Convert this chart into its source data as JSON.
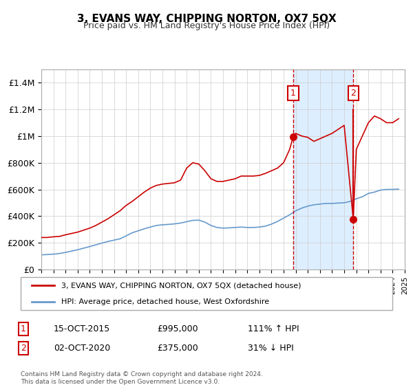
{
  "title": "3, EVANS WAY, CHIPPING NORTON, OX7 5QX",
  "subtitle": "Price paid vs. HM Land Registry's House Price Index (HPI)",
  "legend_label_red": "3, EVANS WAY, CHIPPING NORTON, OX7 5QX (detached house)",
  "legend_label_blue": "HPI: Average price, detached house, West Oxfordshire",
  "annotation1_label": "1",
  "annotation1_date": "15-OCT-2015",
  "annotation1_price": "£995,000",
  "annotation1_hpi": "111% ↑ HPI",
  "annotation1_year": 2015.79,
  "annotation1_value": 995000,
  "annotation2_label": "2",
  "annotation2_date": "02-OCT-2020",
  "annotation2_price": "£375,000",
  "annotation2_hpi": "31% ↓ HPI",
  "annotation2_year": 2020.75,
  "annotation2_value": 375000,
  "footer": "Contains HM Land Registry data © Crown copyright and database right 2024.\nThis data is licensed under the Open Government Licence v3.0.",
  "red_color": "#cc0000",
  "blue_color": "#6699cc",
  "shaded_color": "#ddeeff",
  "grid_color": "#cccccc",
  "ylim": [
    0,
    1500000
  ],
  "xlim_start": 1995,
  "xlim_end": 2025,
  "red_line": {
    "years": [
      1995.0,
      1995.5,
      1996.0,
      1996.5,
      1997.0,
      1997.5,
      1998.0,
      1998.5,
      1999.0,
      1999.5,
      2000.0,
      2000.5,
      2001.0,
      2001.5,
      2002.0,
      2002.5,
      2003.0,
      2003.5,
      2004.0,
      2004.5,
      2005.0,
      2005.5,
      2006.0,
      2006.5,
      2007.0,
      2007.5,
      2008.0,
      2008.5,
      2009.0,
      2009.5,
      2010.0,
      2010.5,
      2011.0,
      2011.5,
      2012.0,
      2012.5,
      2013.0,
      2013.5,
      2014.0,
      2014.5,
      2015.0,
      2015.5,
      2015.79,
      2016.0,
      2016.5,
      2017.0,
      2017.5,
      2018.0,
      2018.5,
      2019.0,
      2019.5,
      2020.0,
      2020.75,
      2021.0,
      2021.5,
      2022.0,
      2022.5,
      2023.0,
      2023.5,
      2024.0,
      2024.5
    ],
    "values": [
      240000,
      240000,
      245000,
      248000,
      260000,
      270000,
      280000,
      295000,
      310000,
      330000,
      355000,
      380000,
      410000,
      440000,
      480000,
      510000,
      545000,
      580000,
      610000,
      630000,
      640000,
      645000,
      650000,
      670000,
      760000,
      800000,
      790000,
      740000,
      680000,
      660000,
      660000,
      670000,
      680000,
      700000,
      700000,
      700000,
      705000,
      720000,
      740000,
      760000,
      800000,
      900000,
      995000,
      1020000,
      1000000,
      990000,
      960000,
      980000,
      1000000,
      1020000,
      1050000,
      1080000,
      375000,
      900000,
      1000000,
      1100000,
      1150000,
      1130000,
      1100000,
      1100000,
      1130000
    ]
  },
  "blue_line": {
    "years": [
      1995.0,
      1995.5,
      1996.0,
      1996.5,
      1997.0,
      1997.5,
      1998.0,
      1998.5,
      1999.0,
      1999.5,
      2000.0,
      2000.5,
      2001.0,
      2001.5,
      2002.0,
      2002.5,
      2003.0,
      2003.5,
      2004.0,
      2004.5,
      2005.0,
      2005.5,
      2006.0,
      2006.5,
      2007.0,
      2007.5,
      2008.0,
      2008.5,
      2009.0,
      2009.5,
      2010.0,
      2010.5,
      2011.0,
      2011.5,
      2012.0,
      2012.5,
      2013.0,
      2013.5,
      2014.0,
      2014.5,
      2015.0,
      2015.5,
      2016.0,
      2016.5,
      2017.0,
      2017.5,
      2018.0,
      2018.5,
      2019.0,
      2019.5,
      2020.0,
      2020.5,
      2021.0,
      2021.5,
      2022.0,
      2022.5,
      2023.0,
      2023.5,
      2024.0,
      2024.5
    ],
    "values": [
      110000,
      112000,
      115000,
      120000,
      128000,
      138000,
      148000,
      160000,
      172000,
      185000,
      198000,
      210000,
      220000,
      230000,
      252000,
      275000,
      290000,
      305000,
      318000,
      330000,
      335000,
      338000,
      342000,
      348000,
      358000,
      368000,
      370000,
      355000,
      330000,
      315000,
      310000,
      312000,
      315000,
      318000,
      315000,
      315000,
      318000,
      325000,
      340000,
      360000,
      385000,
      410000,
      440000,
      460000,
      475000,
      485000,
      490000,
      495000,
      495000,
      498000,
      500000,
      510000,
      530000,
      545000,
      570000,
      580000,
      595000,
      600000,
      600000,
      602000
    ]
  }
}
